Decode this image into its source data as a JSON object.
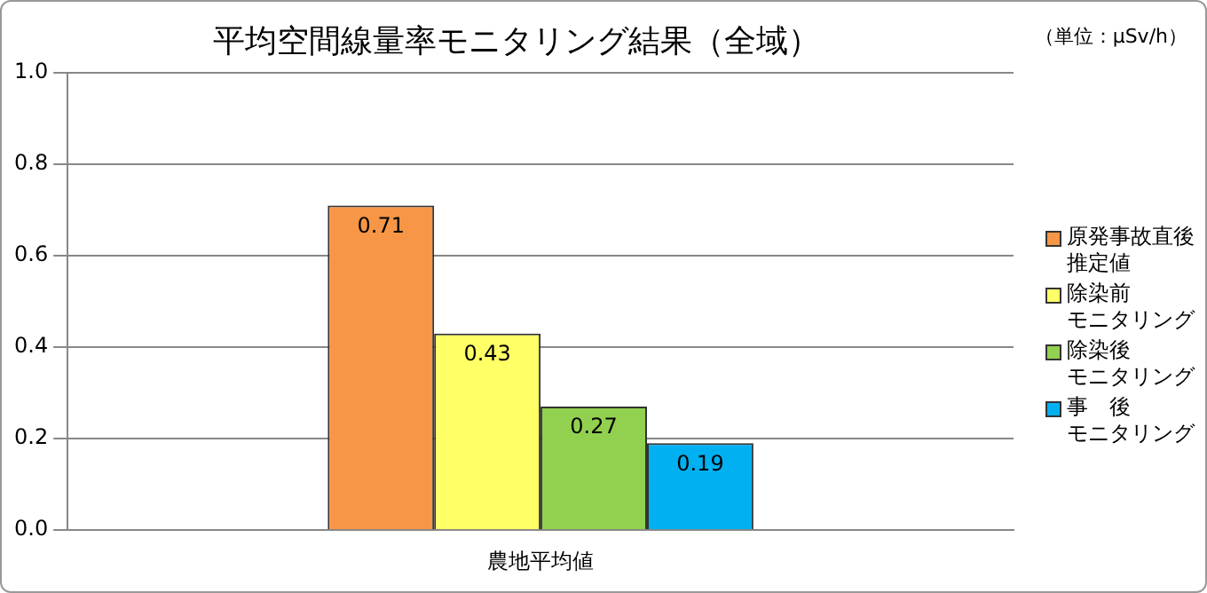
{
  "chart_data": {
    "type": "bar",
    "title": "平均空間線量率モニタリング結果（全域）",
    "annotations": [
      "（単位：μSv/h）"
    ],
    "categories": [
      "農地平均値"
    ],
    "series": [
      {
        "name": "原発事故直後推定値",
        "color": "#f79646",
        "values": [
          0.71
        ]
      },
      {
        "name": "除染前モニタリング",
        "color": "#ffff66",
        "values": [
          0.43
        ]
      },
      {
        "name": "除染後モニタリング",
        "color": "#92d050",
        "values": [
          0.27
        ]
      },
      {
        "name": "事　後モニタリング",
        "color": "#00b0f0",
        "values": [
          0.19
        ]
      }
    ],
    "ylim": [
      0,
      1
    ],
    "yticks": [
      {
        "value": 0,
        "label": "0.0"
      },
      {
        "value": 0.2,
        "label": "0.2"
      },
      {
        "value": 0.4,
        "label": "0.4"
      },
      {
        "value": 0.6,
        "label": "0.6"
      },
      {
        "value": 0.8,
        "label": "0.8"
      },
      {
        "value": 1,
        "label": "1.0"
      }
    ],
    "grid": "y",
    "legend": "right",
    "data_labels": true
  }
}
